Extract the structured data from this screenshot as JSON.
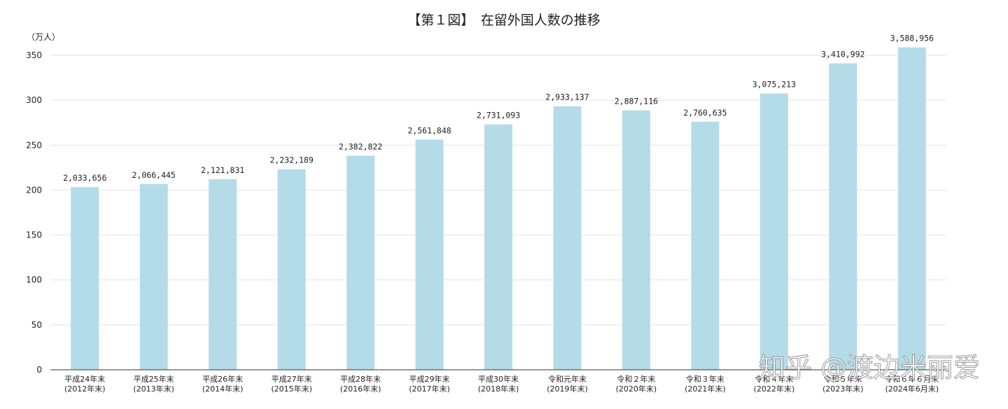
{
  "chart_data": {
    "type": "bar",
    "title": "【第１図】　在留外国人数の推移",
    "unit_label": "（万人）",
    "ylim": [
      0,
      350
    ],
    "yticks": [
      0,
      50,
      100,
      150,
      200,
      250,
      300,
      350
    ],
    "grid": true,
    "categories": [
      [
        "平成24年末",
        "(2012年末)"
      ],
      [
        "平成25年末",
        "(2013年末)"
      ],
      [
        "平成26年末",
        "(2014年末)"
      ],
      [
        "平成27年末",
        "(2015年末)"
      ],
      [
        "平成28年末",
        "(2016年末)"
      ],
      [
        "平成29年末",
        "(2017年末)"
      ],
      [
        "平成30年末",
        "(2018年末)"
      ],
      [
        "令和元年末",
        "(2019年末)"
      ],
      [
        "令和２年末",
        "(2020年末)"
      ],
      [
        "令和３年末",
        "(2021年末)"
      ],
      [
        "令和４年末",
        "(2022年末)"
      ],
      [
        "令和５年末",
        "(2023年末)"
      ],
      [
        "令和６年６月末",
        "(2024年6月末)"
      ]
    ],
    "values": [
      2033656,
      2066445,
      2121831,
      2232189,
      2382822,
      2561848,
      2731093,
      2933137,
      2887116,
      2760635,
      3075213,
      3410992,
      3588956
    ],
    "value_labels": [
      "2,033,656",
      "2,066,445",
      "2,121,831",
      "2,232,189",
      "2,382,822",
      "2,561,848",
      "2,731,093",
      "2,933,137",
      "2,887,116",
      "2,760,635",
      "3,075,213",
      "3,410,992",
      "3,588,956"
    ],
    "bar_color": "#b4dbe8"
  },
  "watermark": "知乎 @渡边米丽爱"
}
